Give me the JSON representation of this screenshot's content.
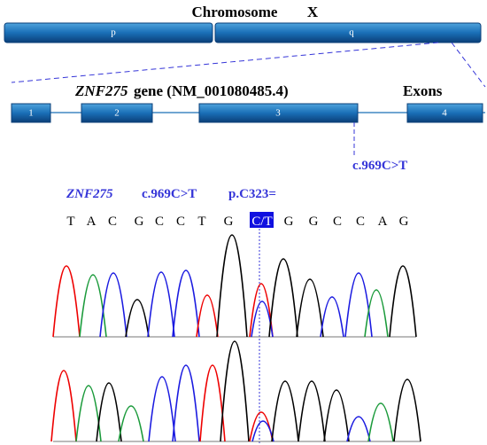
{
  "chromosome": {
    "title": "Chromosome",
    "name": "X",
    "arms": [
      "p",
      "q"
    ]
  },
  "gene": {
    "symbol": "ZNF275",
    "description": "gene (NM_001080485.4)",
    "exons_label": "Exons",
    "exons": [
      "1",
      "2",
      "3",
      "4"
    ]
  },
  "variant": {
    "label": "c.969C>T"
  },
  "sequence": {
    "gene": "ZNF275",
    "cdna": "c.969C>T",
    "protein": "p.C323=",
    "bases": [
      "T",
      "A",
      "C",
      "G",
      "C",
      "C",
      "T",
      "G",
      "C/T",
      "G",
      "G",
      "C",
      "C",
      "A",
      "G"
    ]
  }
}
